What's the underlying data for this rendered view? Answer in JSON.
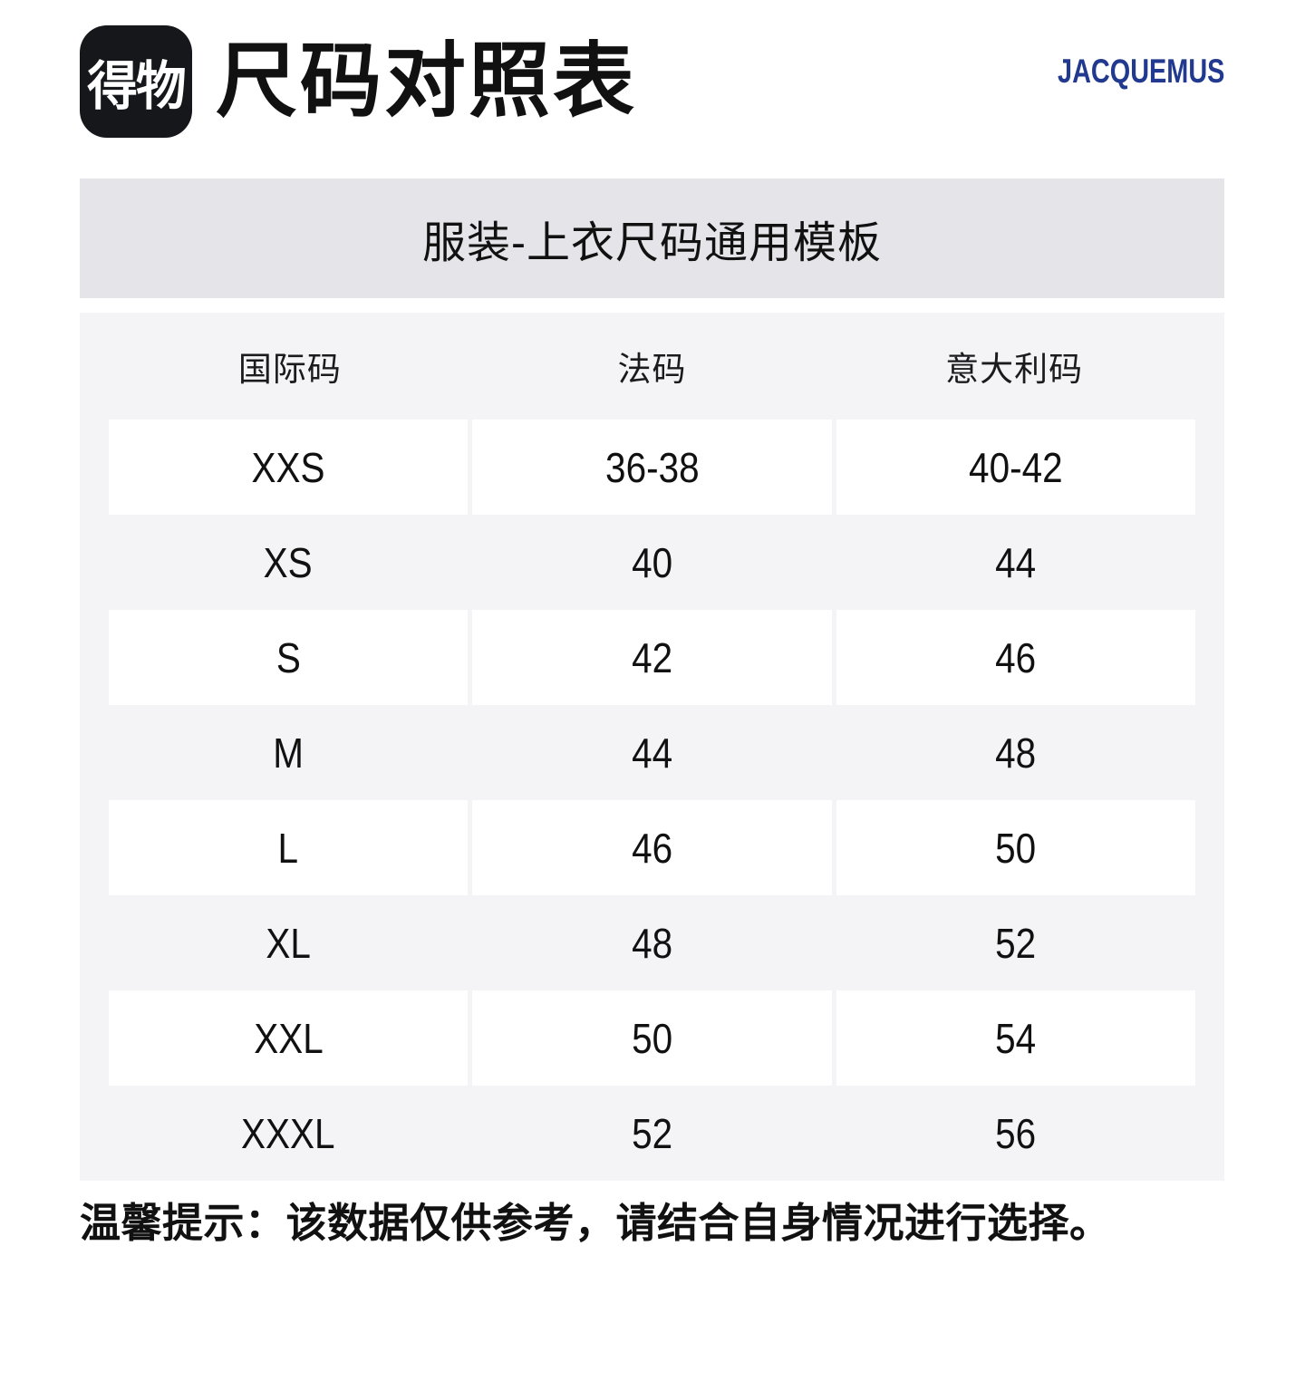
{
  "header": {
    "logo_text": "得物",
    "title": "尺码对照表",
    "brand": "JACQUEMUS"
  },
  "banner": {
    "title": "服装-上衣尺码通用模板"
  },
  "size_table": {
    "columns": [
      "国际码",
      "法码",
      "意大利码"
    ],
    "rows": [
      [
        "XXS",
        "36-38",
        "40-42"
      ],
      [
        "XS",
        "40",
        "44"
      ],
      [
        "S",
        "42",
        "46"
      ],
      [
        "M",
        "44",
        "48"
      ],
      [
        "L",
        "46",
        "50"
      ],
      [
        "XL",
        "48",
        "52"
      ],
      [
        "XXL",
        "50",
        "54"
      ],
      [
        "XXXL",
        "52",
        "56"
      ]
    ]
  },
  "footer": {
    "tip_label": "温馨提示：",
    "tip_text": "该数据仅供参考，请结合自身情况进行选择。"
  },
  "colors": {
    "logo_bg": "#16171B",
    "banner_bg": "#E5E4E9",
    "table_bg": "#F4F4F6",
    "row_white": "#FFFFFF",
    "brand_blue": "#21398E",
    "text": "#111111"
  }
}
